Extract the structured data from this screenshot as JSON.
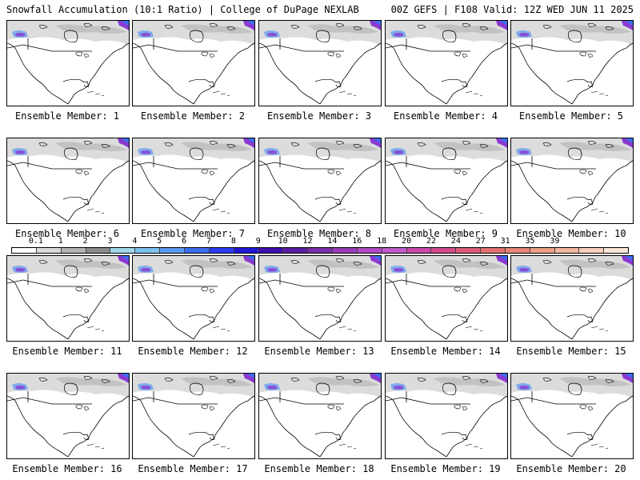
{
  "header": {
    "left": "Snowfall Accumulation (10:1 Ratio) | College of DuPage NEXLAB",
    "right": "00Z GEFS | F108 Valid: 12Z WED JUN 11 2025"
  },
  "panels": [
    {
      "label": "Ensemble Member: 1"
    },
    {
      "label": "Ensemble Member: 2"
    },
    {
      "label": "Ensemble Member: 3"
    },
    {
      "label": "Ensemble Member: 4"
    },
    {
      "label": "Ensemble Member: 5"
    },
    {
      "label": "Ensemble Member: 6"
    },
    {
      "label": "Ensemble Member: 7"
    },
    {
      "label": "Ensemble Member: 8"
    },
    {
      "label": "Ensemble Member: 9"
    },
    {
      "label": "Ensemble Member: 10"
    },
    {
      "label": "Ensemble Member: 11"
    },
    {
      "label": "Ensemble Member: 12"
    },
    {
      "label": "Ensemble Member: 13"
    },
    {
      "label": "Ensemble Member: 14"
    },
    {
      "label": "Ensemble Member: 15"
    },
    {
      "label": "Ensemble Member: 16"
    },
    {
      "label": "Ensemble Member: 17"
    },
    {
      "label": "Ensemble Member: 18"
    },
    {
      "label": "Ensemble Member: 19"
    },
    {
      "label": "Ensemble Member: 20"
    }
  ],
  "colorbar": {
    "labels": [
      "0.1",
      "1",
      "2",
      "3",
      "4",
      "5",
      "6",
      "7",
      "8",
      "9",
      "10",
      "12",
      "14",
      "16",
      "18",
      "20",
      "22",
      "24",
      "27",
      "31",
      "35",
      "39"
    ],
    "colors": [
      "#ffffff",
      "#d9d9d9",
      "#b3b3b3",
      "#8c8c8c",
      "#9fd8e8",
      "#7ec0ee",
      "#5a9bf0",
      "#3c6ef0",
      "#2a3df0",
      "#2018d8",
      "#3d10b0",
      "#5a1fa0",
      "#7a2fa8",
      "#983cb8",
      "#b04cc4",
      "#c05cc8",
      "#cc4aa8",
      "#d44c8c",
      "#dc5c78",
      "#e27070",
      "#e88878",
      "#eea088",
      "#f2b8a0",
      "#f6d0bc",
      "#fae6d8"
    ]
  },
  "colors": {
    "land_snow_gray": "#c8c8c8",
    "snow_blue": "#6aa0f0",
    "snow_purple": "#8a3ad0",
    "outline": "#000000"
  }
}
